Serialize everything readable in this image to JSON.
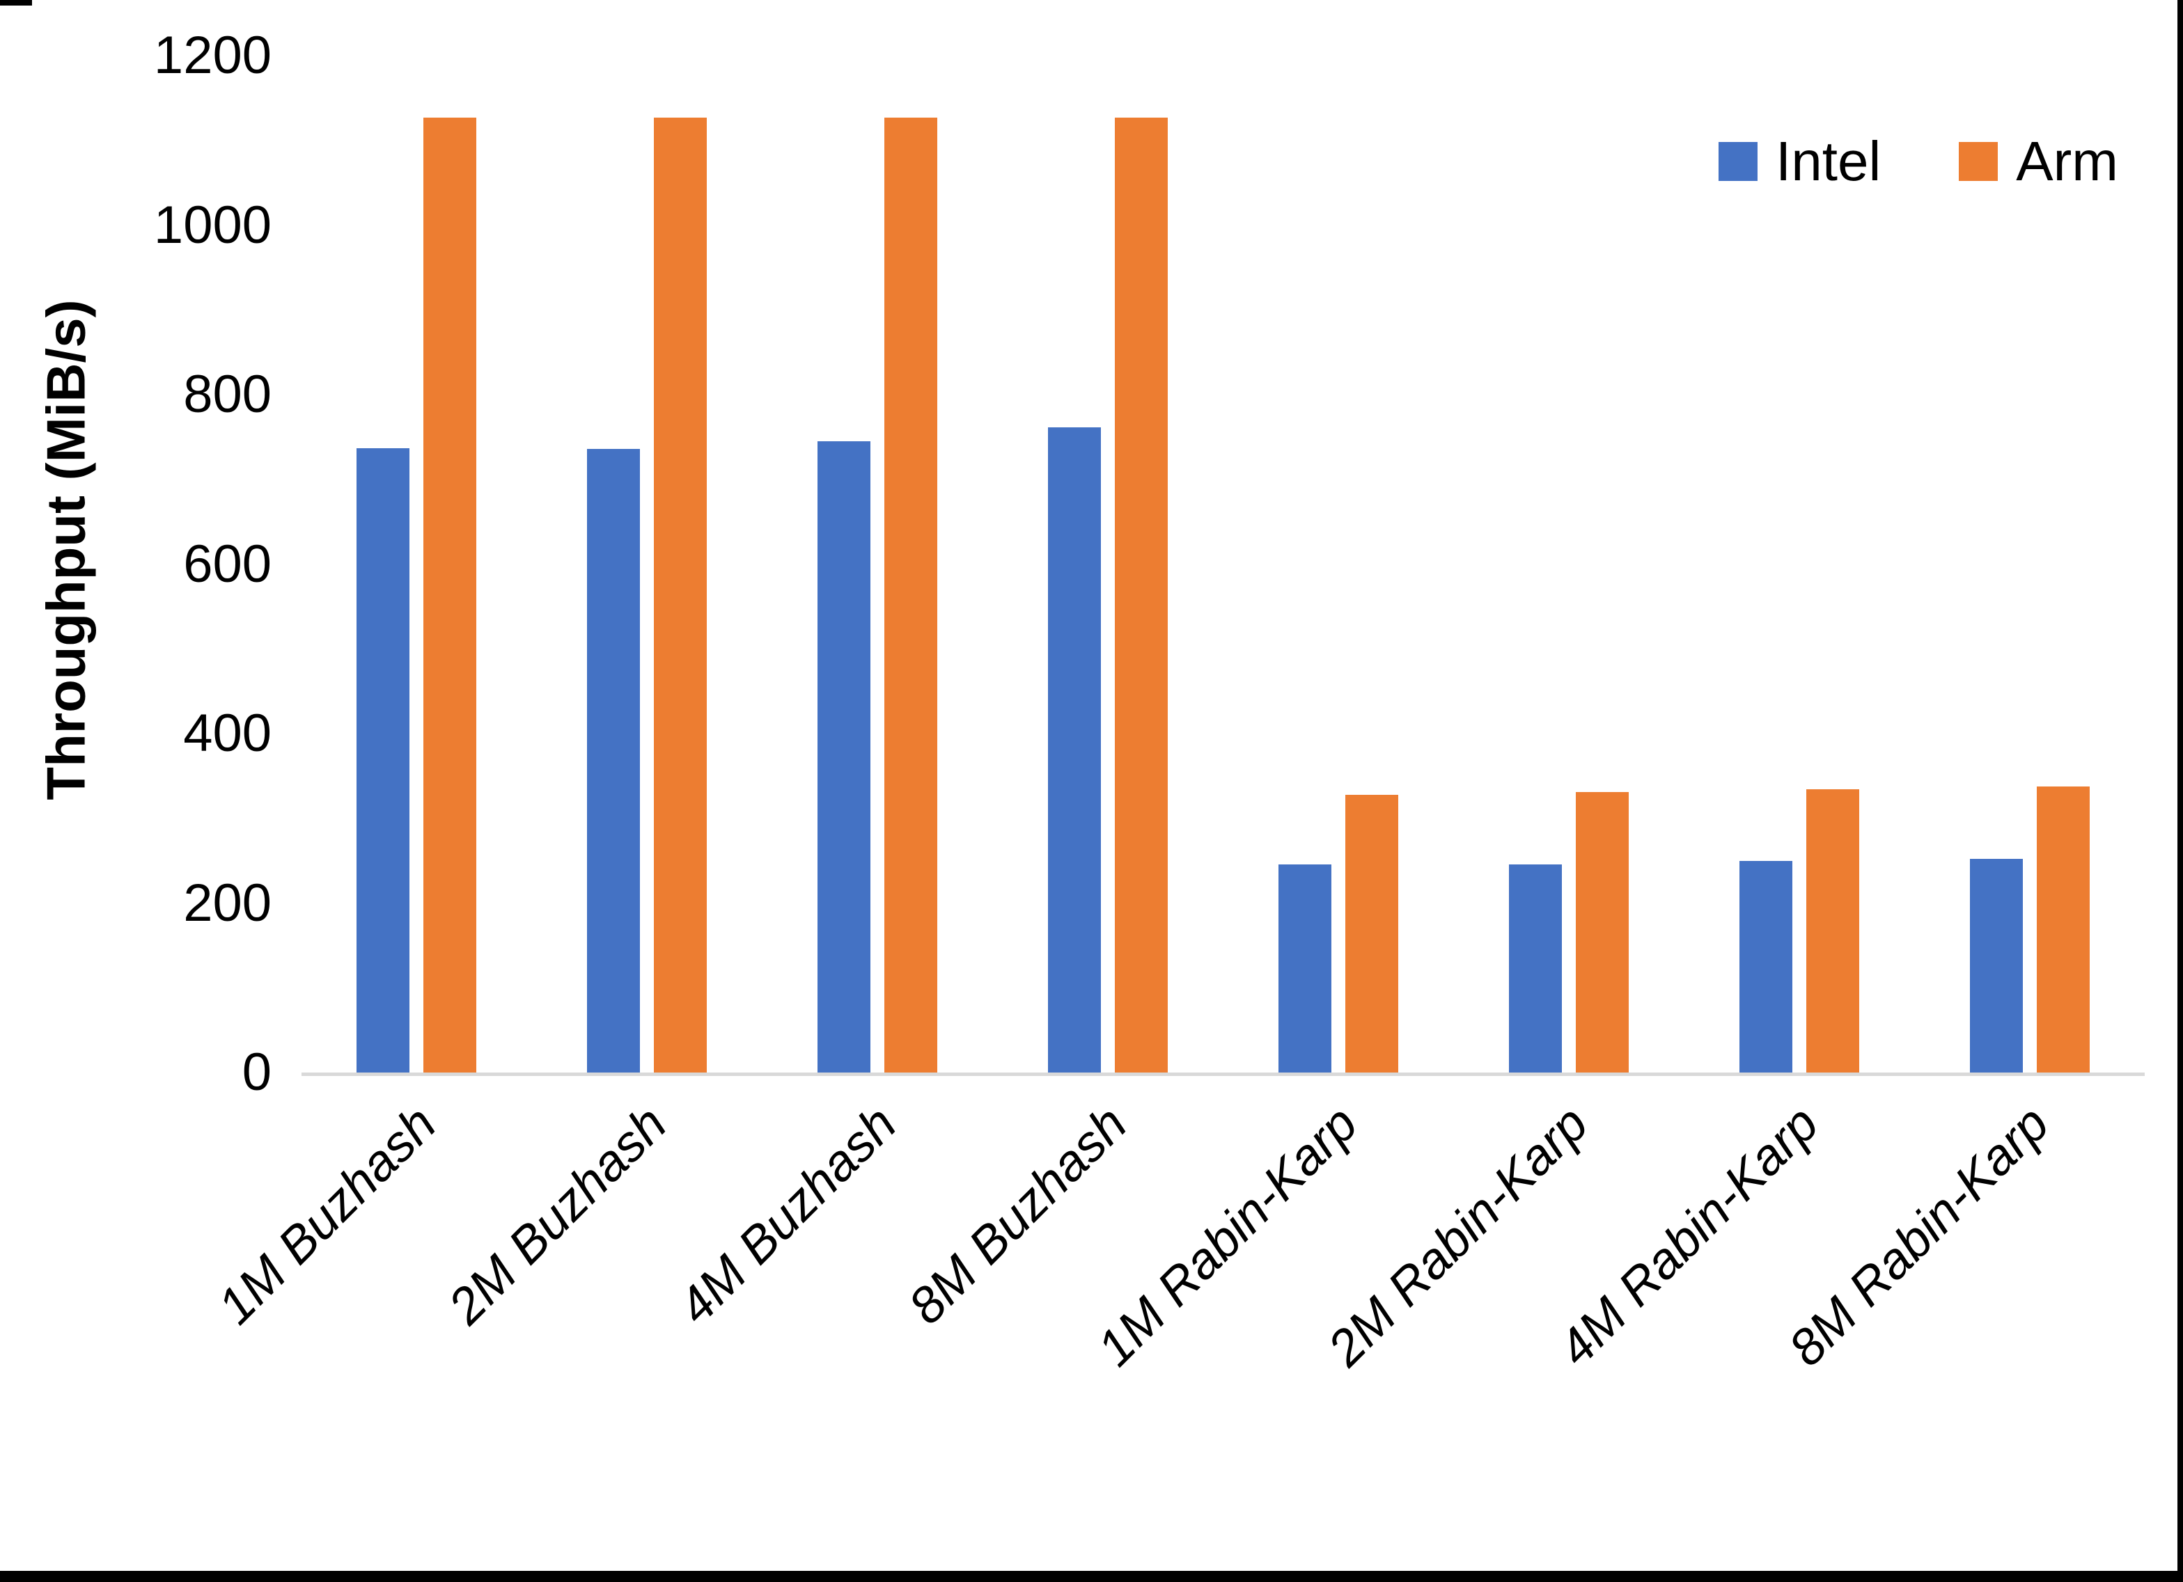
{
  "chart_data": {
    "type": "bar",
    "title": "",
    "xlabel": "",
    "ylabel": "Throughput (MiB/s)",
    "ylim": [
      0,
      1200
    ],
    "yticks": [
      0,
      200,
      400,
      600,
      800,
      1000,
      1200
    ],
    "grid": false,
    "legend_position": "top-right",
    "categories": [
      "1M Buzhash",
      "2M Buzhash",
      "4M Buzhash",
      "8M Buzhash",
      "1M Rabin-Karp",
      "2M Rabin-Karp",
      "4M Rabin-Karp",
      "8M Rabin-Karp"
    ],
    "series": [
      {
        "name": "Intel",
        "color": "#4472C4",
        "values": [
          737,
          736,
          745,
          761,
          246,
          246,
          250,
          252
        ]
      },
      {
        "name": "Arm",
        "color": "#ED7D31",
        "values": [
          1127,
          1127,
          1127,
          1127,
          328,
          331,
          334,
          338
        ]
      }
    ]
  },
  "colors": {
    "axis_line": "#D9D9D9",
    "text": "#000000",
    "background": "#FFFFFF",
    "border": "#000000"
  }
}
